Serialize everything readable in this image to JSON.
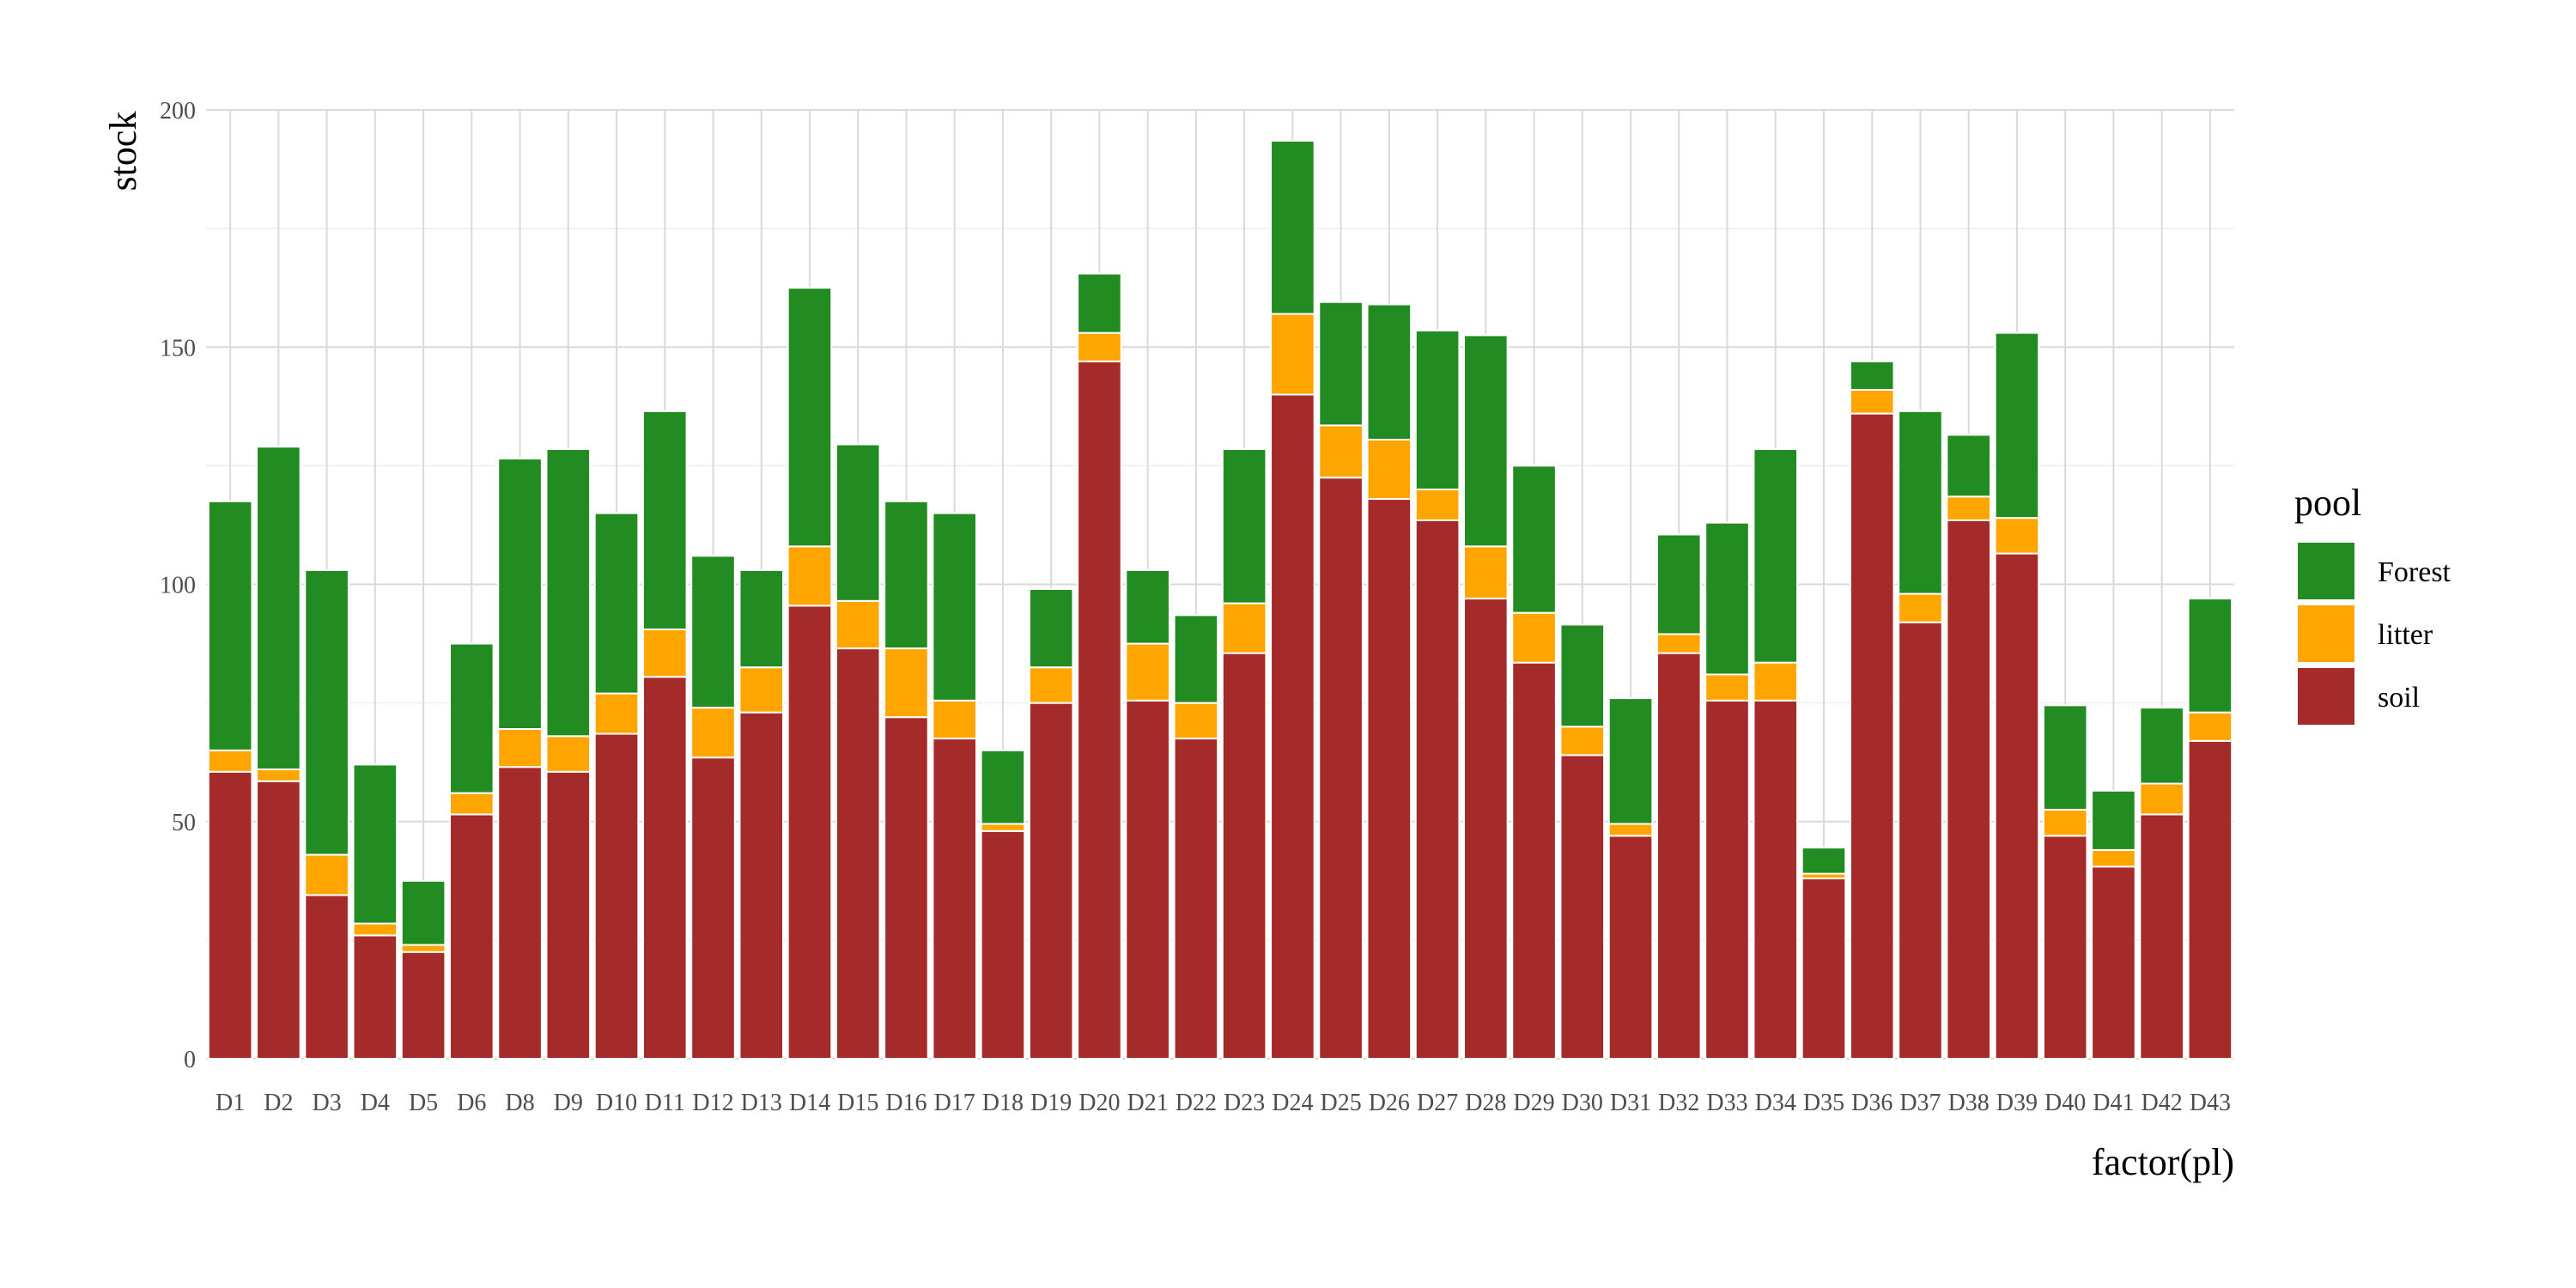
{
  "chart_data": {
    "type": "bar",
    "stacked": true,
    "xlabel": "factor(pl)",
    "ylabel": "stock",
    "ylim": [
      0,
      200
    ],
    "yticks": [
      0,
      50,
      100,
      150,
      200
    ],
    "grid": true,
    "legend": {
      "title": "pool",
      "placement": "right",
      "entries": [
        {
          "name": "Forest",
          "color": "#228B22"
        },
        {
          "name": "litter",
          "color": "#FFA500"
        },
        {
          "name": "soil",
          "color": "#A52A2A"
        }
      ]
    },
    "categories": [
      "D1",
      "D2",
      "D3",
      "D4",
      "D5",
      "D6",
      "D8",
      "D9",
      "D10",
      "D11",
      "D12",
      "D13",
      "D14",
      "D15",
      "D16",
      "D17",
      "D18",
      "D19",
      "D20",
      "D21",
      "D22",
      "D23",
      "D24",
      "D25",
      "D26",
      "D27",
      "D28",
      "D29",
      "D30",
      "D31",
      "D32",
      "D33",
      "D34",
      "D35",
      "D36",
      "D37",
      "D38",
      "D39",
      "D40",
      "D41",
      "D42",
      "D43"
    ],
    "series": [
      {
        "name": "soil",
        "color": "#A52A2A",
        "values": [
          60.5,
          58.5,
          34.5,
          26,
          22.5,
          51.5,
          61.5,
          60.5,
          68.5,
          80.5,
          63.5,
          73,
          95.5,
          86.5,
          72,
          67.5,
          48,
          75,
          147,
          75.5,
          67.5,
          85.5,
          140,
          122.5,
          118,
          113.5,
          97,
          83.5,
          64,
          47,
          85.5,
          75.5,
          75.5,
          38,
          136,
          92,
          113.5,
          106.5,
          47,
          40.5,
          51.5,
          67
        ]
      },
      {
        "name": "litter",
        "color": "#FFA500",
        "values": [
          4.5,
          2.5,
          8.5,
          2.5,
          1.5,
          4.5,
          8,
          7.5,
          8.5,
          10,
          10.5,
          9.5,
          12.5,
          10,
          14.5,
          8,
          1.5,
          7.5,
          6,
          12,
          7.5,
          10.5,
          17,
          11,
          12.5,
          6.5,
          11,
          10.5,
          6,
          2.5,
          4,
          5.5,
          8,
          1,
          5,
          6,
          5,
          7.5,
          5.5,
          3.5,
          6.5,
          6
        ]
      },
      {
        "name": "Forest",
        "color": "#228B22",
        "values": [
          52.5,
          68,
          60,
          33.5,
          13.5,
          31.5,
          57,
          60.5,
          38,
          46,
          32,
          20.5,
          54.5,
          33,
          31,
          39.5,
          15.5,
          16.5,
          12.5,
          15.5,
          18.5,
          32.5,
          36.5,
          26,
          28.5,
          33.5,
          44.5,
          31,
          21.5,
          26.5,
          21,
          32,
          45,
          5.5,
          6,
          38.5,
          13,
          39,
          22,
          12.5,
          16,
          24
        ]
      }
    ]
  }
}
